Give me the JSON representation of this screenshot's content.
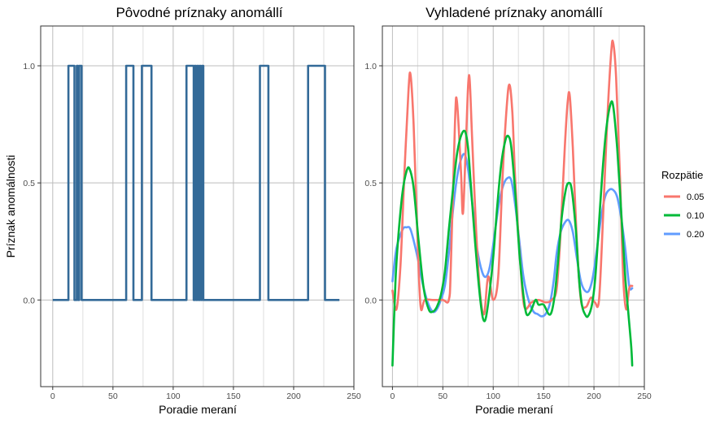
{
  "chart_data": [
    {
      "type": "line",
      "title": "Pôvodné príznaky anomállí",
      "xlabel": "Poradie meraní",
      "ylabel": "Príznak anomálnosti",
      "xlim": [
        -10,
        250
      ],
      "ylim": [
        -0.37,
        1.17
      ],
      "xticks": [
        0,
        50,
        100,
        150,
        200,
        250
      ],
      "yticks": [
        0.0,
        0.5,
        1.0
      ],
      "xtick_labels": [
        "0",
        "50",
        "100",
        "150",
        "200",
        "250"
      ],
      "ytick_labels": [
        "0.0",
        "0.5",
        "1.0"
      ],
      "grid": true,
      "color": "#336a98",
      "segments": [
        [
          13,
          18
        ],
        [
          20,
          21
        ],
        [
          22,
          24
        ],
        [
          61,
          67
        ],
        [
          74,
          82
        ],
        [
          111,
          117
        ],
        [
          118,
          119
        ],
        [
          120,
          121
        ],
        [
          122,
          123
        ],
        [
          124,
          125
        ],
        [
          172,
          179
        ],
        [
          212,
          226
        ]
      ],
      "x_range": [
        0,
        238
      ]
    },
    {
      "type": "line",
      "title": "Vyhladené príznaky anomállí",
      "xlabel": "Poradie meraní",
      "ylabel": "",
      "xlim": [
        -10,
        250
      ],
      "ylim": [
        -0.37,
        1.17
      ],
      "xticks": [
        0,
        50,
        100,
        150,
        200,
        250
      ],
      "yticks": [
        0.0,
        0.5,
        1.0
      ],
      "xtick_labels": [
        "0",
        "50",
        "100",
        "150",
        "200",
        "250"
      ],
      "ytick_labels": [
        "0.0",
        "0.5",
        "1.0"
      ],
      "grid": true,
      "legend": {
        "title": "Rozpätie",
        "position": "right"
      },
      "series": [
        {
          "name": "0.05",
          "color": "#f8766d",
          "points": [
            [
              0,
              0.04
            ],
            [
              4,
              -0.04
            ],
            [
              8,
              0.15
            ],
            [
              12,
              0.55
            ],
            [
              16,
              0.9
            ],
            [
              18,
              0.96
            ],
            [
              21,
              0.75
            ],
            [
              25,
              0.25
            ],
            [
              28,
              -0.03
            ],
            [
              32,
              0.0
            ],
            [
              40,
              0.0
            ],
            [
              50,
              0.0
            ],
            [
              56,
              0.0
            ],
            [
              58,
              0.15
            ],
            [
              62,
              0.75
            ],
            [
              64,
              0.85
            ],
            [
              68,
              0.55
            ],
            [
              70,
              0.37
            ],
            [
              73,
              0.68
            ],
            [
              76,
              0.96
            ],
            [
              79,
              0.7
            ],
            [
              83,
              0.3
            ],
            [
              87,
              0.03
            ],
            [
              91,
              -0.06
            ],
            [
              95,
              0.1
            ],
            [
              100,
              0.0
            ],
            [
              105,
              0.1
            ],
            [
              109,
              0.5
            ],
            [
              113,
              0.8
            ],
            [
              116,
              0.92
            ],
            [
              119,
              0.8
            ],
            [
              122,
              0.5
            ],
            [
              127,
              0.15
            ],
            [
              131,
              -0.03
            ],
            [
              138,
              -0.01
            ],
            [
              145,
              0.0
            ],
            [
              152,
              -0.01
            ],
            [
              158,
              0.0
            ],
            [
              163,
              0.05
            ],
            [
              167,
              0.3
            ],
            [
              171,
              0.65
            ],
            [
              174,
              0.85
            ],
            [
              176,
              0.87
            ],
            [
              179,
              0.65
            ],
            [
              183,
              0.25
            ],
            [
              187,
              0.0
            ],
            [
              192,
              -0.03
            ],
            [
              197,
              0.01
            ],
            [
              201,
              -0.01
            ],
            [
              205,
              0.0
            ],
            [
              209,
              0.35
            ],
            [
              213,
              0.75
            ],
            [
              217,
              1.05
            ],
            [
              219,
              1.1
            ],
            [
              222,
              0.95
            ],
            [
              226,
              0.5
            ],
            [
              229,
              0.1
            ],
            [
              232,
              -0.04
            ],
            [
              235,
              0.05
            ],
            [
              238,
              0.06
            ]
          ]
        },
        {
          "name": "0.10",
          "color": "#00ba38",
          "points": [
            [
              0,
              -0.28
            ],
            [
              3,
              0.08
            ],
            [
              6,
              0.28
            ],
            [
              10,
              0.46
            ],
            [
              14,
              0.55
            ],
            [
              17,
              0.56
            ],
            [
              21,
              0.48
            ],
            [
              26,
              0.25
            ],
            [
              31,
              0.05
            ],
            [
              36,
              -0.04
            ],
            [
              40,
              -0.05
            ],
            [
              44,
              -0.03
            ],
            [
              48,
              0.02
            ],
            [
              52,
              0.12
            ],
            [
              56,
              0.3
            ],
            [
              60,
              0.47
            ],
            [
              64,
              0.62
            ],
            [
              68,
              0.7
            ],
            [
              72,
              0.72
            ],
            [
              75,
              0.65
            ],
            [
              78,
              0.48
            ],
            [
              82,
              0.25
            ],
            [
              86,
              0.05
            ],
            [
              89,
              -0.06
            ],
            [
              91,
              -0.09
            ],
            [
              93,
              -0.07
            ],
            [
              96,
              0.02
            ],
            [
              100,
              0.18
            ],
            [
              104,
              0.4
            ],
            [
              108,
              0.58
            ],
            [
              112,
              0.68
            ],
            [
              115,
              0.7
            ],
            [
              118,
              0.65
            ],
            [
              122,
              0.45
            ],
            [
              126,
              0.2
            ],
            [
              130,
              0.02
            ],
            [
              133,
              -0.06
            ],
            [
              137,
              -0.05
            ],
            [
              142,
              0.0
            ],
            [
              145,
              -0.02
            ],
            [
              150,
              -0.02
            ],
            [
              155,
              -0.06
            ],
            [
              158,
              -0.05
            ],
            [
              161,
              0.02
            ],
            [
              164,
              0.15
            ],
            [
              168,
              0.35
            ],
            [
              172,
              0.47
            ],
            [
              175,
              0.5
            ],
            [
              178,
              0.47
            ],
            [
              182,
              0.3
            ],
            [
              185,
              0.1
            ],
            [
              188,
              -0.02
            ],
            [
              191,
              -0.06
            ],
            [
              194,
              -0.07
            ],
            [
              198,
              -0.02
            ],
            [
              201,
              0.08
            ],
            [
              204,
              0.26
            ],
            [
              208,
              0.52
            ],
            [
              212,
              0.72
            ],
            [
              216,
              0.83
            ],
            [
              219,
              0.83
            ],
            [
              223,
              0.65
            ],
            [
              227,
              0.38
            ],
            [
              231,
              0.1
            ],
            [
              234,
              -0.05
            ],
            [
              237,
              -0.2
            ],
            [
              238,
              -0.28
            ]
          ]
        },
        {
          "name": "0.20",
          "color": "#619cff",
          "points": [
            [
              0,
              0.08
            ],
            [
              4,
              0.22
            ],
            [
              10,
              0.3
            ],
            [
              14,
              0.31
            ],
            [
              18,
              0.3
            ],
            [
              24,
              0.2
            ],
            [
              30,
              0.07
            ],
            [
              35,
              -0.01
            ],
            [
              40,
              -0.05
            ],
            [
              44,
              -0.04
            ],
            [
              48,
              0.0
            ],
            [
              52,
              0.06
            ],
            [
              56,
              0.2
            ],
            [
              60,
              0.38
            ],
            [
              64,
              0.52
            ],
            [
              68,
              0.6
            ],
            [
              72,
              0.62
            ],
            [
              76,
              0.53
            ],
            [
              80,
              0.38
            ],
            [
              84,
              0.22
            ],
            [
              89,
              0.12
            ],
            [
              93,
              0.1
            ],
            [
              97,
              0.15
            ],
            [
              102,
              0.3
            ],
            [
              106,
              0.42
            ],
            [
              110,
              0.49
            ],
            [
              114,
              0.52
            ],
            [
              118,
              0.51
            ],
            [
              122,
              0.4
            ],
            [
              126,
              0.25
            ],
            [
              130,
              0.1
            ],
            [
              135,
              0.0
            ],
            [
              140,
              -0.05
            ],
            [
              144,
              -0.06
            ],
            [
              148,
              -0.07
            ],
            [
              152,
              -0.06
            ],
            [
              156,
              -0.02
            ],
            [
              160,
              0.08
            ],
            [
              163,
              0.2
            ],
            [
              167,
              0.29
            ],
            [
              171,
              0.33
            ],
            [
              175,
              0.34
            ],
            [
              179,
              0.29
            ],
            [
              183,
              0.18
            ],
            [
              187,
              0.08
            ],
            [
              191,
              0.04
            ],
            [
              195,
              0.04
            ],
            [
              199,
              0.1
            ],
            [
              203,
              0.22
            ],
            [
              207,
              0.35
            ],
            [
              211,
              0.44
            ],
            [
              215,
              0.47
            ],
            [
              219,
              0.47
            ],
            [
              223,
              0.44
            ],
            [
              227,
              0.35
            ],
            [
              231,
              0.22
            ],
            [
              235,
              0.06
            ],
            [
              238,
              0.05
            ]
          ]
        }
      ]
    }
  ]
}
